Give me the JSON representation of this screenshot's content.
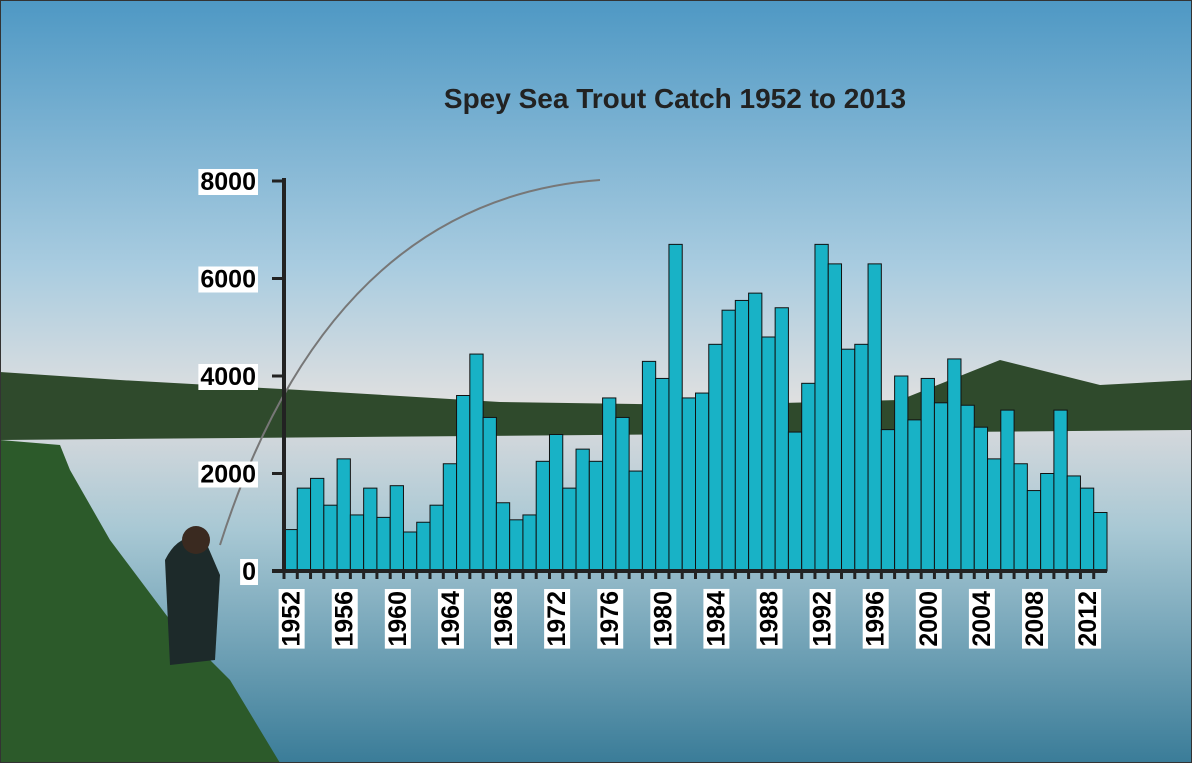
{
  "chart_data": {
    "type": "bar",
    "title": "Spey Sea Trout Catch 1952 to 2013",
    "categories": [
      "1952",
      null,
      null,
      null,
      "1956",
      null,
      null,
      null,
      "1960",
      null,
      null,
      null,
      "1964",
      null,
      null,
      null,
      "1968",
      null,
      null,
      null,
      "1972",
      null,
      null,
      null,
      "1976",
      null,
      null,
      null,
      "1980",
      null,
      null,
      null,
      "1984",
      null,
      null,
      null,
      "1988",
      null,
      null,
      null,
      "1992",
      null,
      null,
      null,
      "1996",
      null,
      null,
      null,
      "2000",
      null,
      null,
      null,
      "2004",
      null,
      null,
      null,
      "2008",
      null,
      null,
      null,
      "2012",
      null
    ],
    "values": [
      850,
      1700,
      1900,
      1350,
      2300,
      1150,
      1700,
      1100,
      1750,
      800,
      1000,
      1350,
      2200,
      3600,
      4450,
      3150,
      1400,
      1050,
      1150,
      2250,
      2800,
      1700,
      2500,
      2250,
      3550,
      3150,
      2050,
      4300,
      3950,
      6700,
      3550,
      3650,
      4650,
      5350,
      5550,
      5700,
      4800,
      5400,
      2850,
      3850,
      6700,
      6300,
      4550,
      4650,
      6300,
      2900,
      4000,
      3100,
      3950,
      3450,
      4350,
      3400,
      2950,
      2300,
      3300,
      2200,
      1650,
      2000,
      3300,
      1950,
      1700,
      1200
    ],
    "color": "#18b2c6",
    "ylim": [
      0,
      8000
    ],
    "yticks": [
      0,
      2000,
      4000,
      6000,
      8000
    ]
  }
}
